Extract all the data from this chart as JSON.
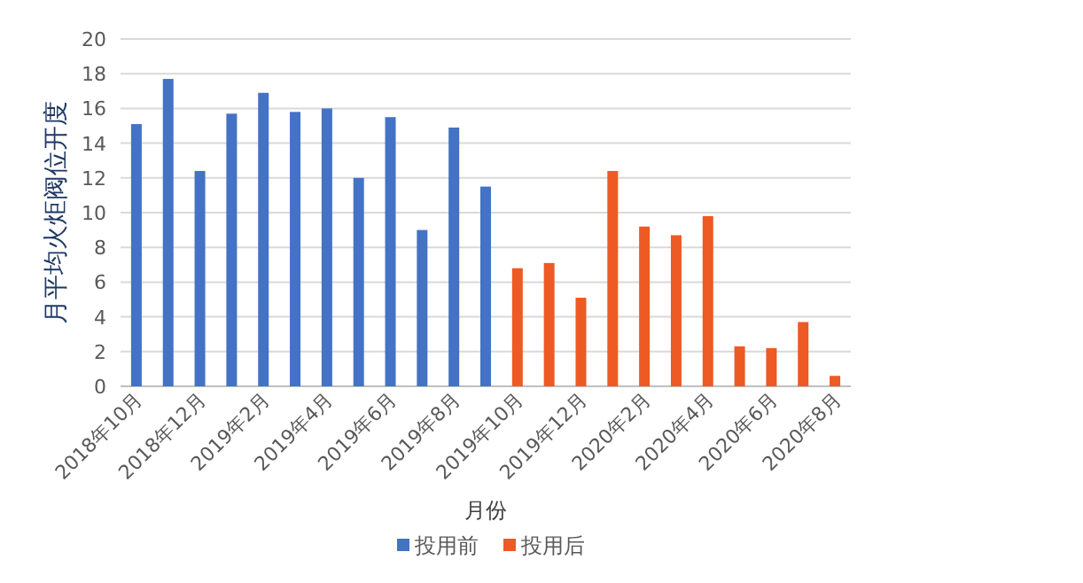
{
  "chart_data": {
    "type": "bar",
    "xlabel": "月份",
    "ylabel": "月平均火炬阀位开度",
    "categories": [
      "2018年10月",
      null,
      "2018年12月",
      null,
      "2019年2月",
      null,
      "2019年4月",
      null,
      "2019年6月",
      null,
      "2019年8月",
      null,
      "2019年10月",
      null,
      "2019年12月",
      null,
      "2020年2月",
      null,
      "2020年4月",
      null,
      "2020年6月",
      null,
      "2020年8月"
    ],
    "series": [
      {
        "name": "投用前",
        "color": "#4472c4",
        "values": [
          15.1,
          17.7,
          12.4,
          15.7,
          16.9,
          15.8,
          16.0,
          12.0,
          15.5,
          9.0,
          14.9,
          11.5,
          null,
          null,
          null,
          null,
          null,
          null,
          null,
          null,
          null,
          null,
          null
        ]
      },
      {
        "name": "投用后",
        "color": "#ed5a24",
        "values": [
          null,
          null,
          null,
          null,
          null,
          null,
          null,
          null,
          null,
          null,
          null,
          null,
          6.8,
          7.1,
          5.1,
          12.4,
          9.2,
          8.7,
          9.8,
          2.3,
          2.2,
          3.7,
          0.6
        ]
      }
    ],
    "ylim": [
      0,
      20
    ],
    "yticks": [
      0,
      2,
      4,
      6,
      8,
      10,
      12,
      14,
      16,
      18,
      20
    ],
    "grid": "y",
    "legend": "bottom"
  }
}
